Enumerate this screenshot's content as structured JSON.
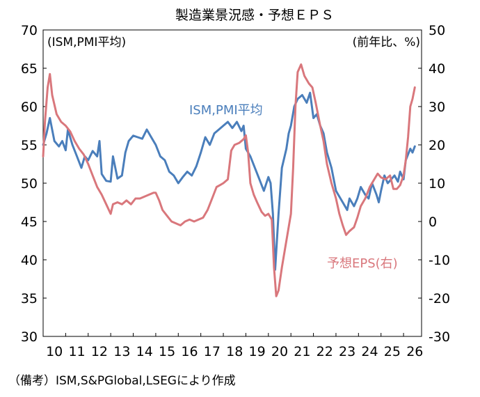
{
  "chart_data": {
    "type": "line",
    "title": "製造業景況感・予想ＥＰＳ",
    "left_axis": {
      "unit_label": "(ISM,PMI平均)",
      "ylim": [
        30,
        70
      ],
      "ticks": [
        "30",
        "35",
        "40",
        "45",
        "50",
        "55",
        "60",
        "65",
        "70"
      ]
    },
    "right_axis": {
      "unit_label": "(前年比、%)",
      "ylim": [
        -30,
        50
      ],
      "ticks": [
        "-30",
        "-20",
        "-10",
        "0",
        "10",
        "20",
        "30",
        "40",
        "50"
      ]
    },
    "x_ticks": [
      "10",
      "11",
      "12",
      "13",
      "14",
      "15",
      "16",
      "17",
      "18",
      "19",
      "20",
      "21",
      "22",
      "23",
      "24",
      "25",
      "26"
    ],
    "x_range": [
      2010,
      2026.8
    ],
    "grid": false,
    "series": [
      {
        "name": "ISM, PMI平均",
        "axis": "left",
        "color": "#4a7ebb",
        "points": [
          [
            2010.0,
            55.0
          ],
          [
            2010.15,
            56.5
          ],
          [
            2010.3,
            58.5
          ],
          [
            2010.5,
            55.5
          ],
          [
            2010.7,
            54.8
          ],
          [
            2010.85,
            55.5
          ],
          [
            2011.0,
            54.3
          ],
          [
            2011.1,
            57.0
          ],
          [
            2011.3,
            55.0
          ],
          [
            2011.5,
            53.5
          ],
          [
            2011.7,
            52.0
          ],
          [
            2011.85,
            53.5
          ],
          [
            2012.0,
            53.0
          ],
          [
            2012.2,
            54.2
          ],
          [
            2012.4,
            53.5
          ],
          [
            2012.5,
            55.5
          ],
          [
            2012.6,
            51.2
          ],
          [
            2012.8,
            50.3
          ],
          [
            2013.0,
            50.2
          ],
          [
            2013.1,
            53.5
          ],
          [
            2013.3,
            50.6
          ],
          [
            2013.5,
            51.0
          ],
          [
            2013.65,
            54.0
          ],
          [
            2013.8,
            55.5
          ],
          [
            2014.0,
            56.2
          ],
          [
            2014.2,
            56.0
          ],
          [
            2014.4,
            55.8
          ],
          [
            2014.6,
            57.0
          ],
          [
            2014.8,
            56.0
          ],
          [
            2015.0,
            55.0
          ],
          [
            2015.2,
            53.5
          ],
          [
            2015.4,
            53.0
          ],
          [
            2015.6,
            51.5
          ],
          [
            2015.8,
            51.0
          ],
          [
            2016.0,
            50.0
          ],
          [
            2016.2,
            50.8
          ],
          [
            2016.4,
            51.5
          ],
          [
            2016.6,
            51.0
          ],
          [
            2016.8,
            52.2
          ],
          [
            2017.0,
            54.0
          ],
          [
            2017.2,
            56.0
          ],
          [
            2017.4,
            55.0
          ],
          [
            2017.6,
            56.5
          ],
          [
            2017.8,
            57.0
          ],
          [
            2018.0,
            57.5
          ],
          [
            2018.2,
            58.0
          ],
          [
            2018.4,
            57.2
          ],
          [
            2018.6,
            58.0
          ],
          [
            2018.8,
            56.8
          ],
          [
            2018.9,
            57.5
          ],
          [
            2019.0,
            54.5
          ],
          [
            2019.2,
            53.5
          ],
          [
            2019.4,
            52.0
          ],
          [
            2019.6,
            50.5
          ],
          [
            2019.8,
            49.0
          ],
          [
            2020.0,
            50.8
          ],
          [
            2020.1,
            50.0
          ],
          [
            2020.2,
            46.0
          ],
          [
            2020.3,
            38.7
          ],
          [
            2020.45,
            46.0
          ],
          [
            2020.6,
            52.0
          ],
          [
            2020.8,
            54.5
          ],
          [
            2020.9,
            56.5
          ],
          [
            2021.0,
            57.5
          ],
          [
            2021.15,
            60.0
          ],
          [
            2021.3,
            61.0
          ],
          [
            2021.5,
            61.5
          ],
          [
            2021.7,
            60.5
          ],
          [
            2021.85,
            61.8
          ],
          [
            2022.0,
            58.5
          ],
          [
            2022.15,
            59.0
          ],
          [
            2022.3,
            57.5
          ],
          [
            2022.45,
            56.5
          ],
          [
            2022.6,
            54.0
          ],
          [
            2022.8,
            52.0
          ],
          [
            2023.0,
            49.0
          ],
          [
            2023.1,
            48.5
          ],
          [
            2023.3,
            47.5
          ],
          [
            2023.5,
            46.5
          ],
          [
            2023.6,
            48.0
          ],
          [
            2023.8,
            47.0
          ],
          [
            2023.95,
            48.0
          ],
          [
            2024.1,
            49.5
          ],
          [
            2024.3,
            48.5
          ],
          [
            2024.45,
            48.0
          ],
          [
            2024.6,
            50.0
          ],
          [
            2024.8,
            48.5
          ],
          [
            2024.9,
            47.5
          ],
          [
            2025.0,
            49.0
          ],
          [
            2025.15,
            51.0
          ],
          [
            2025.3,
            50.0
          ],
          [
            2025.45,
            50.5
          ],
          [
            2025.6,
            51.0
          ],
          [
            2025.75,
            50.2
          ],
          [
            2025.85,
            51.5
          ],
          [
            2026.0,
            50.5
          ],
          [
            2026.1,
            53.0
          ],
          [
            2026.3,
            54.5
          ],
          [
            2026.4,
            54.0
          ],
          [
            2026.5,
            54.8
          ]
        ]
      },
      {
        "name": "予想EPS(右)",
        "axis": "right",
        "color": "#d9777c",
        "points": [
          [
            2010.0,
            17.0
          ],
          [
            2010.08,
            26.0
          ],
          [
            2010.2,
            35.0
          ],
          [
            2010.3,
            38.5
          ],
          [
            2010.4,
            33.0
          ],
          [
            2010.6,
            28.0
          ],
          [
            2010.8,
            26.0
          ],
          [
            2011.0,
            25.0
          ],
          [
            2011.2,
            23.5
          ],
          [
            2011.4,
            21.0
          ],
          [
            2011.6,
            19.0
          ],
          [
            2011.8,
            17.5
          ],
          [
            2012.0,
            15.0
          ],
          [
            2012.2,
            12.0
          ],
          [
            2012.4,
            9.0
          ],
          [
            2012.6,
            7.0
          ],
          [
            2012.8,
            4.5
          ],
          [
            2013.0,
            2.0
          ],
          [
            2013.1,
            4.5
          ],
          [
            2013.3,
            5.0
          ],
          [
            2013.5,
            4.5
          ],
          [
            2013.7,
            5.5
          ],
          [
            2013.9,
            4.5
          ],
          [
            2014.1,
            6.0
          ],
          [
            2014.3,
            6.0
          ],
          [
            2014.5,
            6.5
          ],
          [
            2014.7,
            7.0
          ],
          [
            2014.9,
            7.5
          ],
          [
            2015.0,
            7.5
          ],
          [
            2015.15,
            5.5
          ],
          [
            2015.3,
            3.0
          ],
          [
            2015.5,
            1.5
          ],
          [
            2015.7,
            0.0
          ],
          [
            2015.9,
            -0.5
          ],
          [
            2016.1,
            -1.0
          ],
          [
            2016.3,
            0.0
          ],
          [
            2016.5,
            0.5
          ],
          [
            2016.7,
            0.0
          ],
          [
            2016.9,
            0.5
          ],
          [
            2017.1,
            1.0
          ],
          [
            2017.3,
            3.0
          ],
          [
            2017.5,
            6.0
          ],
          [
            2017.7,
            9.0
          ],
          [
            2017.85,
            9.5
          ],
          [
            2018.0,
            10.0
          ],
          [
            2018.2,
            11.0
          ],
          [
            2018.35,
            18.5
          ],
          [
            2018.5,
            20.0
          ],
          [
            2018.7,
            20.5
          ],
          [
            2018.9,
            21.5
          ],
          [
            2019.0,
            22.5
          ],
          [
            2019.1,
            18.0
          ],
          [
            2019.2,
            10.0
          ],
          [
            2019.35,
            7.0
          ],
          [
            2019.5,
            5.0
          ],
          [
            2019.7,
            2.5
          ],
          [
            2019.85,
            1.5
          ],
          [
            2020.0,
            2.0
          ],
          [
            2020.15,
            0.5
          ],
          [
            2020.25,
            -12.0
          ],
          [
            2020.35,
            -19.5
          ],
          [
            2020.45,
            -18.0
          ],
          [
            2020.6,
            -12.0
          ],
          [
            2020.8,
            -5.0
          ],
          [
            2021.0,
            2.0
          ],
          [
            2021.1,
            14.0
          ],
          [
            2021.2,
            30.0
          ],
          [
            2021.3,
            39.0
          ],
          [
            2021.45,
            41.0
          ],
          [
            2021.6,
            38.0
          ],
          [
            2021.8,
            36.0
          ],
          [
            2021.95,
            35.0
          ],
          [
            2022.1,
            31.0
          ],
          [
            2022.3,
            25.0
          ],
          [
            2022.45,
            21.0
          ],
          [
            2022.6,
            15.0
          ],
          [
            2022.8,
            10.0
          ],
          [
            2023.0,
            6.0
          ],
          [
            2023.15,
            2.0
          ],
          [
            2023.3,
            -1.0
          ],
          [
            2023.45,
            -3.5
          ],
          [
            2023.6,
            -2.5
          ],
          [
            2023.8,
            -1.5
          ],
          [
            2023.95,
            1.0
          ],
          [
            2024.1,
            4.0
          ],
          [
            2024.3,
            6.0
          ],
          [
            2024.5,
            9.0
          ],
          [
            2024.7,
            11.0
          ],
          [
            2024.85,
            12.5
          ],
          [
            2025.0,
            11.5
          ],
          [
            2025.2,
            11.0
          ],
          [
            2025.4,
            12.0
          ],
          [
            2025.55,
            8.5
          ],
          [
            2025.7,
            8.5
          ],
          [
            2025.85,
            9.5
          ],
          [
            2026.0,
            12.0
          ],
          [
            2026.1,
            16.0
          ],
          [
            2026.2,
            22.0
          ],
          [
            2026.3,
            30.0
          ],
          [
            2026.4,
            32.0
          ],
          [
            2026.5,
            35.0
          ]
        ]
      }
    ],
    "annotations": {
      "ism_label": "ISM,PMI平均",
      "eps_label": "予想EPS(右)"
    },
    "footnote": "（備考）ISM,S&PGlobal,LSEGにより作成"
  }
}
